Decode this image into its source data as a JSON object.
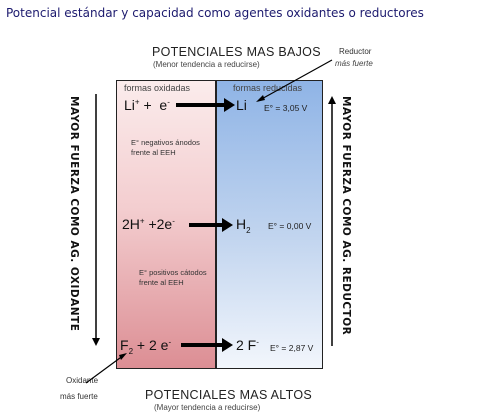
{
  "title": "Potencial estándar y capacidad como agentes oxidantes o reductores",
  "top_header": "POTENCIALES MAS BAJOS",
  "top_sub": "(Menor tendencia a reducirse)",
  "bottom_header": "POTENCIALES  MAS  ALTOS",
  "bottom_sub": "(Mayor tendencia a reducirse)",
  "reductor_label": "Reductor",
  "reductor_sub": "más fuerte",
  "oxidante_label": "Oxidante",
  "oxidante_sub": "más fuerte",
  "left_column_label": "formas oxidadas",
  "right_column_label": "formas reducidas",
  "left_vertical": "MAYOR   FUERZA COMO AG.  OXIDANTE",
  "right_vertical": "MAYOR   FUERZA COMO AG. REDUCTOR",
  "rows": [
    {
      "oxidized": "Li",
      "ox_sup": "+",
      "ox_rest": " +  e",
      "ox_rest_sup": "-",
      "reduced": "Li",
      "red_sup": "",
      "red_sub": "",
      "potential": "E° =  3,05 V"
    },
    {
      "oxidized": "2H",
      "ox_sup": "+",
      "ox_rest": " +2e",
      "ox_rest_sup": "-",
      "reduced": "H",
      "red_sup": "",
      "red_sub": "2",
      "potential": "E° = 0,00 V"
    },
    {
      "oxidized": "F",
      "ox_sub": "2",
      "ox_rest": " + 2 e",
      "ox_rest_sup": "-",
      "reduced": "2 F",
      "red_sup": "-",
      "red_sub": "",
      "potential": "E° = 2,87 V"
    }
  ],
  "note_negative": "E° negativos ánodos frente al EEH",
  "note_positive": "E° positivos cátodos frente al EEH"
}
